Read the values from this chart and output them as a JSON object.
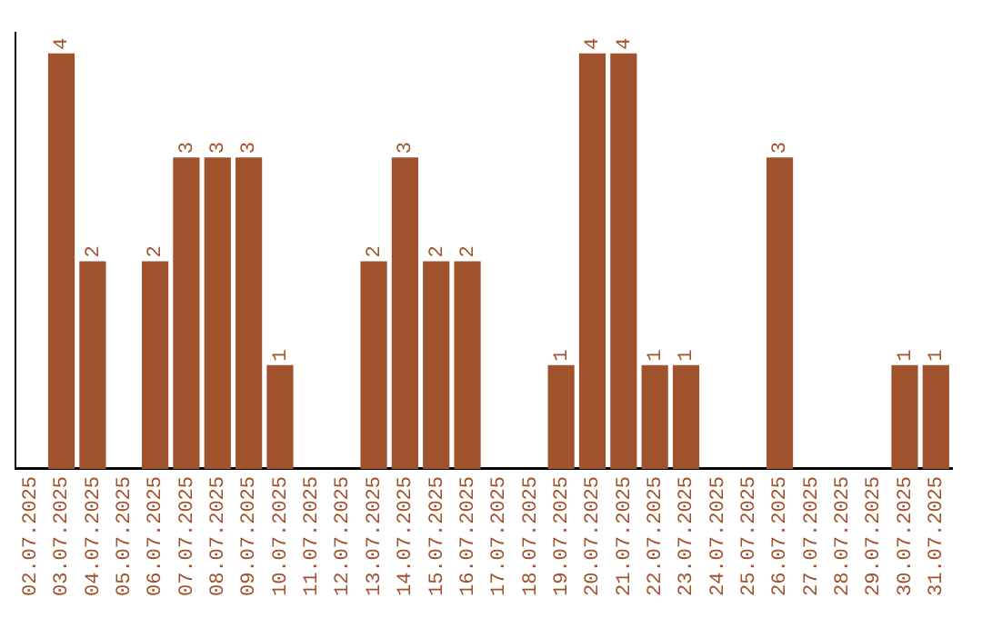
{
  "chart_data": {
    "type": "bar",
    "categories": [
      "02.07.2025",
      "03.07.2025",
      "04.07.2025",
      "05.07.2025",
      "06.07.2025",
      "07.07.2025",
      "08.07.2025",
      "09.07.2025",
      "10.07.2025",
      "11.07.2025",
      "12.07.2025",
      "13.07.2025",
      "14.07.2025",
      "15.07.2025",
      "16.07.2025",
      "17.07.2025",
      "18.07.2025",
      "19.07.2025",
      "20.07.2025",
      "21.07.2025",
      "22.07.2025",
      "23.07.2025",
      "24.07.2025",
      "25.07.2025",
      "26.07.2025",
      "27.07.2025",
      "28.07.2025",
      "29.07.2025",
      "30.07.2025",
      "31.07.2025"
    ],
    "values": [
      0,
      4,
      2,
      0,
      2,
      3,
      3,
      3,
      1,
      0,
      0,
      2,
      3,
      2,
      2,
      0,
      0,
      1,
      4,
      4,
      1,
      1,
      0,
      0,
      3,
      0,
      0,
      0,
      1,
      1
    ],
    "value_labels": [
      null,
      "4",
      "2",
      null,
      "2",
      "3",
      "3",
      "3",
      "1",
      null,
      null,
      "2",
      "3",
      "2",
      "2",
      null,
      null,
      "1",
      "4",
      "4",
      "1",
      "1",
      null,
      null,
      "3",
      null,
      null,
      null,
      "1",
      "1"
    ],
    "color": "#a0522d",
    "ylim": [
      0,
      4.2
    ],
    "tick_labels": "x",
    "grid": false,
    "legend": false
  }
}
